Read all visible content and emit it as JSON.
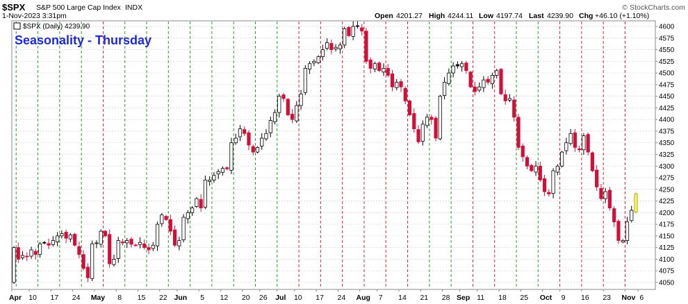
{
  "header": {
    "symbol": "$SPX",
    "name": "S&P 500 Large Cap Index",
    "exchange": "INDX",
    "datetime": "1-Nov-2023 3:31pm",
    "open_label": "Open",
    "open": "4201.27",
    "high_label": "High",
    "high": "4244.11",
    "low_label": "Low",
    "low": "4197.74",
    "last_label": "Last",
    "last": "4239.90",
    "chg_label": "Chg",
    "chg": "+46.10 (+1.10%)",
    "watermark": "© StockCharts.com"
  },
  "legend": {
    "series_label": "$SPX (Daily) 4239.90"
  },
  "chart_data": {
    "type": "candlestick",
    "title": "Seasonality - Thursday",
    "ylim": [
      4035,
      4612
    ],
    "yticks": [
      4050,
      4075,
      4100,
      4125,
      4150,
      4175,
      4200,
      4225,
      4250,
      4275,
      4300,
      4325,
      4350,
      4375,
      4400,
      4425,
      4450,
      4475,
      4500,
      4525,
      4550,
      4575,
      4600
    ],
    "xtick_labels": [
      {
        "i": 0,
        "label": "Apr",
        "bold": true
      },
      {
        "i": 4,
        "label": "10"
      },
      {
        "i": 9,
        "label": "17"
      },
      {
        "i": 14,
        "label": "24"
      },
      {
        "i": 19,
        "label": "May",
        "bold": true
      },
      {
        "i": 24,
        "label": "8"
      },
      {
        "i": 29,
        "label": "15"
      },
      {
        "i": 34,
        "label": "22"
      },
      {
        "i": 38,
        "label": "Jun",
        "bold": true
      },
      {
        "i": 43,
        "label": "5"
      },
      {
        "i": 48,
        "label": "12"
      },
      {
        "i": 53,
        "label": "20"
      },
      {
        "i": 57,
        "label": "26"
      },
      {
        "i": 61,
        "label": "Jul",
        "bold": true
      },
      {
        "i": 65,
        "label": "10"
      },
      {
        "i": 70,
        "label": "17"
      },
      {
        "i": 75,
        "label": "24"
      },
      {
        "i": 80,
        "label": "Aug",
        "bold": true
      },
      {
        "i": 84,
        "label": "7"
      },
      {
        "i": 89,
        "label": "14"
      },
      {
        "i": 94,
        "label": "21"
      },
      {
        "i": 99,
        "label": "28"
      },
      {
        "i": 103,
        "label": "Sep",
        "bold": true
      },
      {
        "i": 107,
        "label": "11"
      },
      {
        "i": 112,
        "label": "18"
      },
      {
        "i": 117,
        "label": "25"
      },
      {
        "i": 122,
        "label": "Oct",
        "bold": true
      },
      {
        "i": 126,
        "label": "9"
      },
      {
        "i": 131,
        "label": "16"
      },
      {
        "i": 136,
        "label": "23"
      },
      {
        "i": 141,
        "label": "Nov",
        "bold": true
      },
      {
        "i": 144,
        "label": "6"
      }
    ],
    "week_start_index": 1,
    "green_week_ranges": [
      [
        0,
        16
      ],
      [
        26,
        61
      ],
      [
        94,
        103
      ],
      [
        116,
        122
      ]
    ],
    "series": [
      {
        "closes": [
          4125,
          4100,
          4108,
          4105,
          4120,
          4110,
          4133,
          4135,
          4130,
          4140,
          4150,
          4155,
          4145,
          4152,
          4130,
          4110,
          4080,
          4060,
          4133,
          4135,
          4160,
          4150,
          4090,
          4100,
          4140,
          4135,
          4140,
          4132,
          4130,
          4136,
          4125,
          4120,
          4130,
          4175,
          4195,
          4185,
          4160,
          4130,
          4140,
          4190,
          4200,
          4210,
          4230,
          4210,
          4270,
          4270,
          4280,
          4288,
          4295,
          4294,
          4350,
          4360,
          4380,
          4370,
          4345,
          4330,
          4340,
          4360,
          4370,
          4398,
          4415,
          4450,
          4445,
          4410,
          4400,
          4430,
          4455,
          4510,
          4520,
          4525,
          4535,
          4550,
          4565,
          4550,
          4555,
          4560,
          4595,
          4580,
          4600,
          4600,
          4590,
          4525,
          4510,
          4520,
          4505,
          4510,
          4495,
          4470,
          4480,
          4470,
          4440,
          4410,
          4380,
          4352,
          4390,
          4405,
          4400,
          4360,
          4450,
          4480,
          4500,
          4515,
          4515,
          4520,
          4505,
          4470,
          4460,
          4470,
          4485,
          4480,
          4495,
          4505,
          4455,
          4440,
          4445,
          4405,
          4340,
          4320,
          4300,
          4290,
          4300,
          4270,
          4245,
          4240,
          4290,
          4300,
          4330,
          4350,
          4370,
          4340,
          4335,
          4365,
          4330,
          4290,
          4255,
          4230,
          4245,
          4210,
          4180,
          4140,
          4140,
          4180,
          4205,
          4240
        ]
      }
    ],
    "watermark_note": ""
  }
}
